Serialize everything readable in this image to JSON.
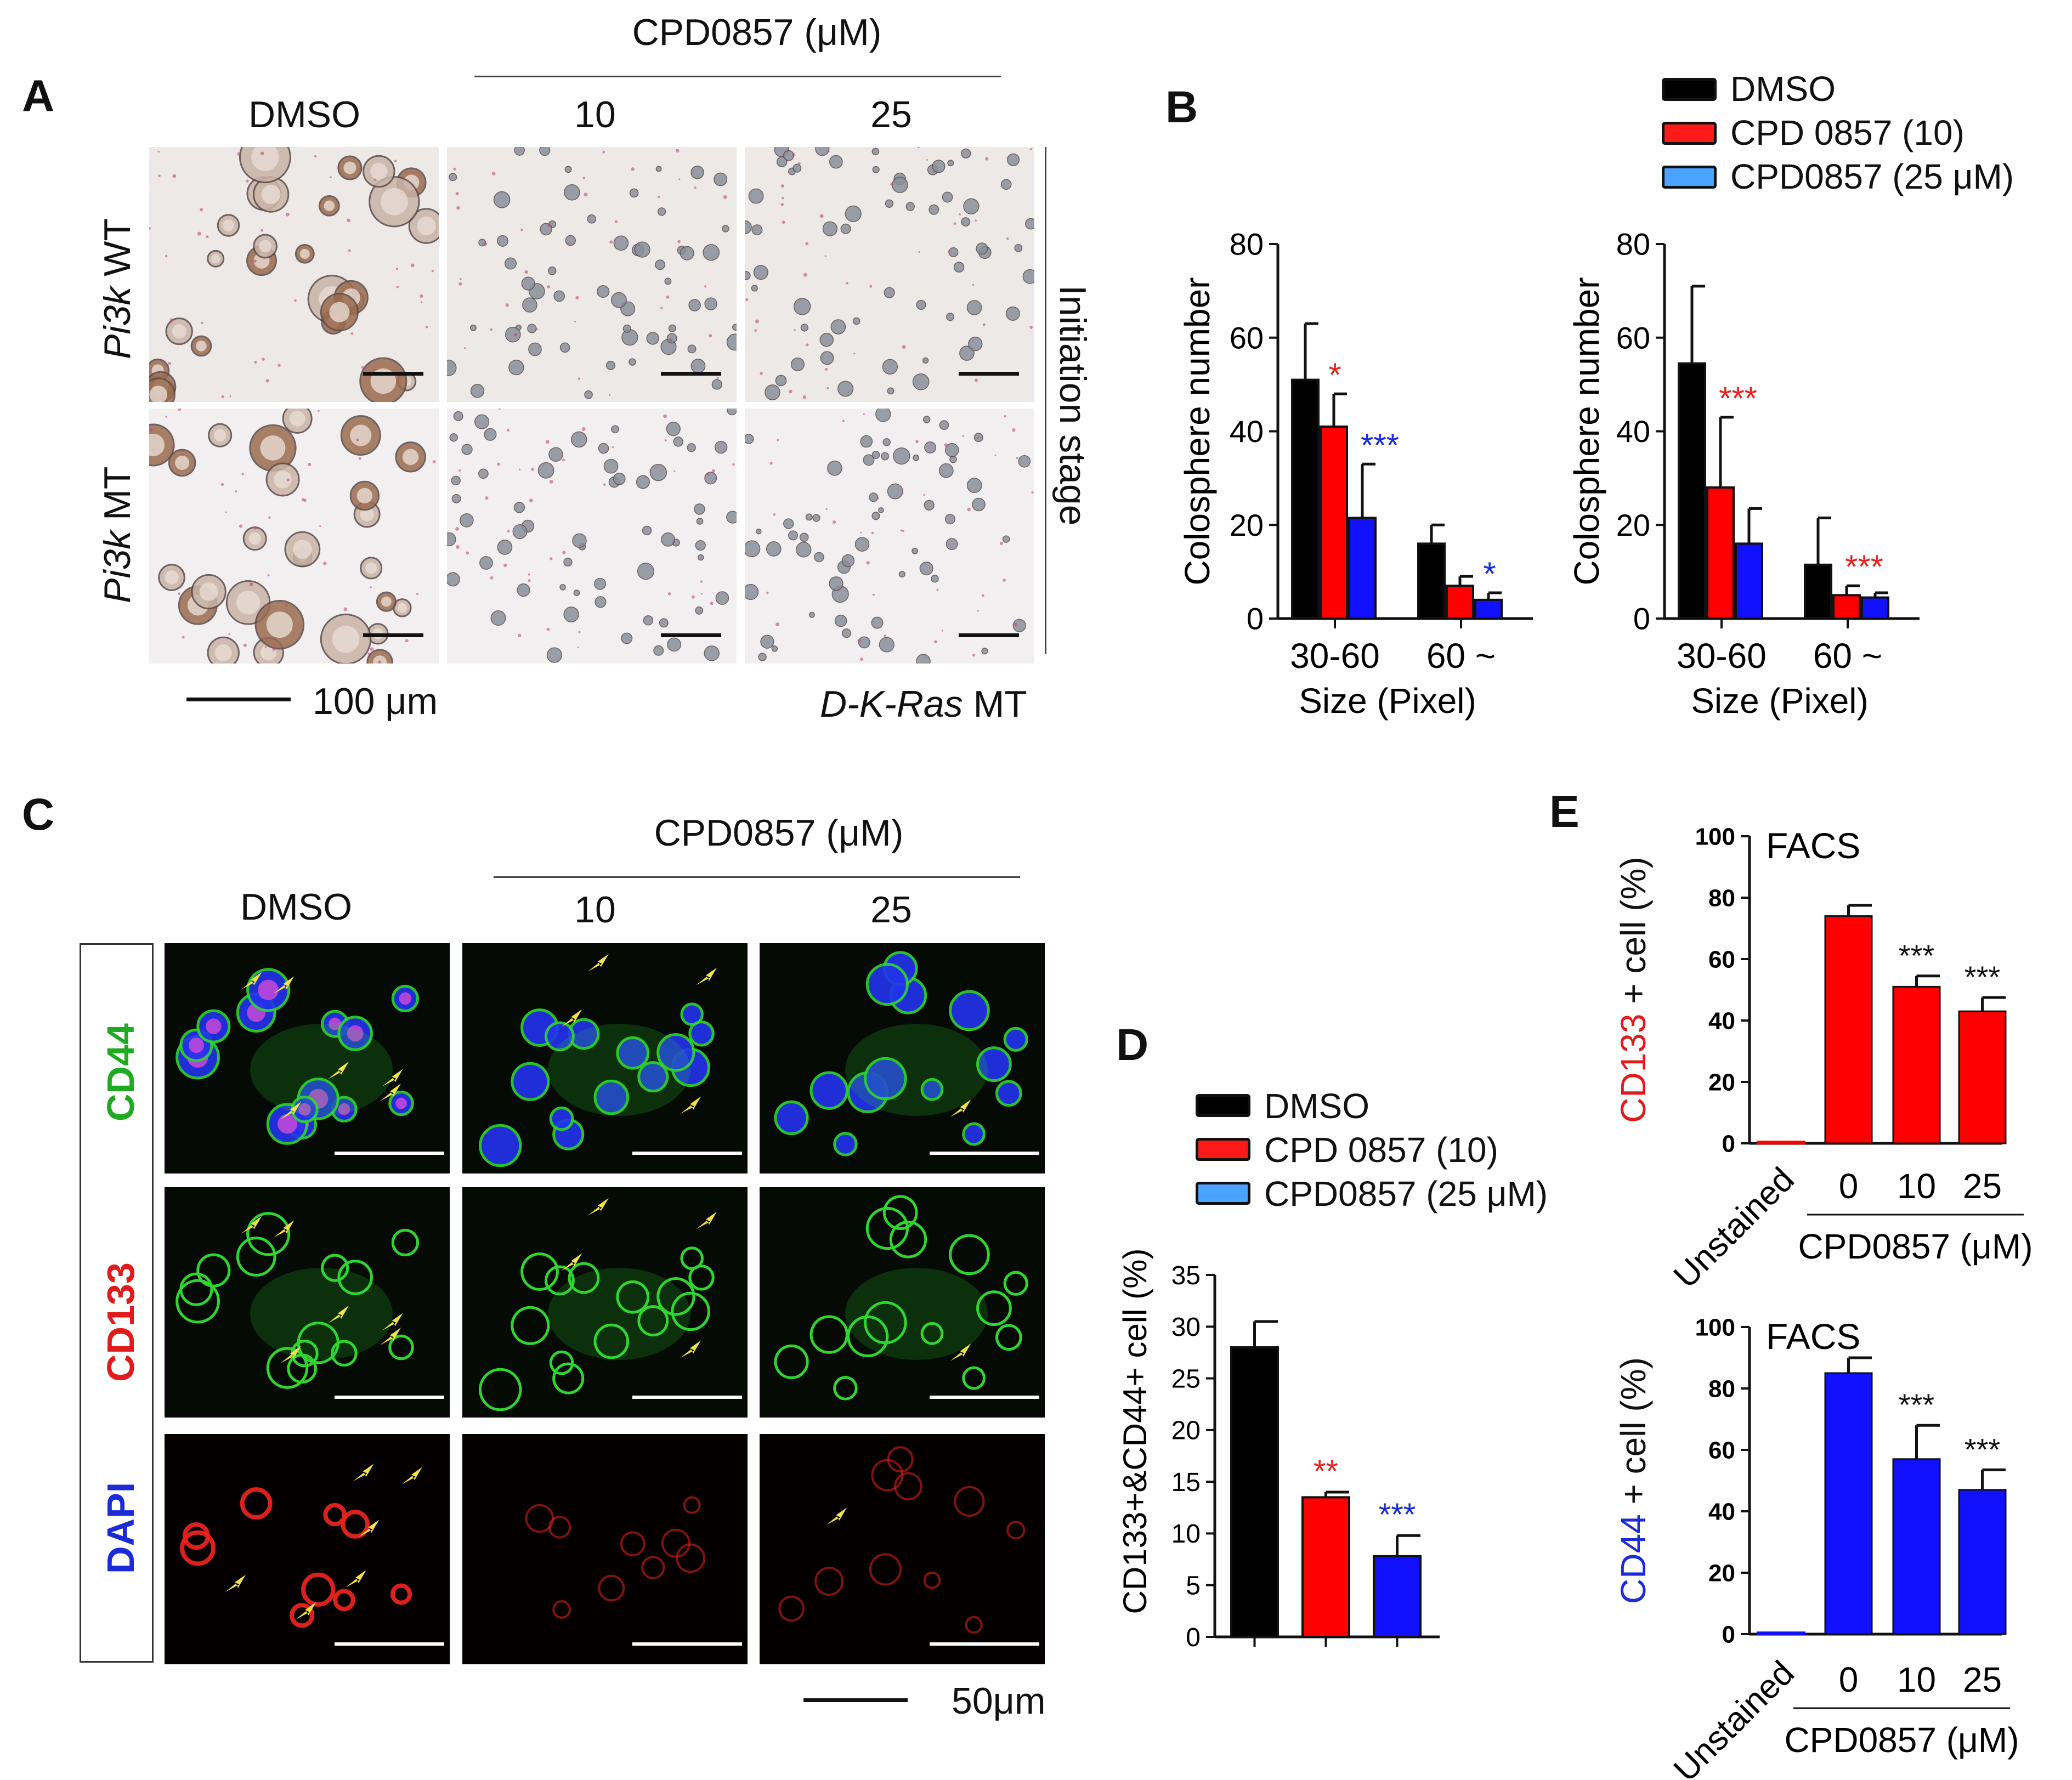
{
  "panels": {
    "A": "A",
    "B": "B",
    "C": "C",
    "D": "D",
    "E": "E"
  },
  "panel_a": {
    "compound_header": "CPD0857 (μM)",
    "col_labels": [
      "DMSO",
      "10",
      "25"
    ],
    "row_labels": [
      "Pi3k WT",
      "Pi3k MT"
    ],
    "row_labels_italic": [
      "Pi3k",
      "Pi3k"
    ],
    "row_labels_plain": [
      " WT",
      " MT"
    ],
    "stage_label": "Initiation stage",
    "scale_label": "100 μm",
    "footer_italic": "D-K-Ras",
    "footer_plain": " MT",
    "image_colors": {
      "wt_bg": "#ece9e6",
      "mt_bg": "#f2eff0",
      "cell": "#8a6a5a",
      "cell_light": "#c9b3a6"
    }
  },
  "panel_c": {
    "compound_header": "CPD0857 (μM)",
    "col_labels": [
      "DMSO",
      "10",
      "25"
    ],
    "row_labels": [
      "CD44",
      "CD133",
      "DAPI"
    ],
    "row_label_colors": [
      "#1faa1f",
      "#e11b1b",
      "#1b2bd8"
    ],
    "scale_label": "50μm",
    "image_colors": {
      "bg": "#000000",
      "green": "#2fd62f",
      "red": "#e8231f",
      "blue": "#2233ee",
      "arrow": "#f2e24a"
    }
  },
  "legend": {
    "items": [
      "DMSO",
      "CPD 0857 (10)",
      "CPD0857 (25 μM)"
    ],
    "colors": [
      "#000000",
      "#ff0000",
      "#1111ff"
    ]
  },
  "colors": {
    "dmso": "#000000",
    "cpd10": "#ff0000",
    "cpd25": "#1111ff",
    "sig10": "#e8231f",
    "sig25": "#1b2bd8"
  },
  "chart_data": [
    {
      "id": "B-left",
      "type": "bar",
      "categories": [
        "30-60",
        "60 ~"
      ],
      "xlabel": "Size (Pixel)",
      "ylabel": "Colosphere number",
      "ylim": [
        0,
        80
      ],
      "yticks": [
        0,
        20,
        40,
        60,
        80
      ],
      "series": [
        {
          "name": "DMSO",
          "values": [
            51,
            16
          ],
          "errors": [
            12,
            4
          ]
        },
        {
          "name": "CPD 0857 (10)",
          "values": [
            41,
            7
          ],
          "errors": [
            7,
            2
          ]
        },
        {
          "name": "CPD0857 (25 μM)",
          "values": [
            21.5,
            4
          ],
          "errors": [
            11.5,
            1.5
          ]
        }
      ],
      "significance": [
        {
          "cat": 0,
          "series": 1,
          "text": "*"
        },
        {
          "cat": 0,
          "series": 2,
          "text": "***"
        },
        {
          "cat": 1,
          "series": 2,
          "text": "*"
        }
      ]
    },
    {
      "id": "B-right",
      "type": "bar",
      "categories": [
        "30-60",
        "60 ~"
      ],
      "xlabel": "Size (Pixel)",
      "ylabel": "Colosphere number",
      "ylim": [
        0,
        80
      ],
      "yticks": [
        0,
        20,
        40,
        60,
        80
      ],
      "series": [
        {
          "name": "DMSO",
          "values": [
            54.5,
            11.5
          ],
          "errors": [
            16.5,
            10
          ]
        },
        {
          "name": "CPD 0857 (10)",
          "values": [
            28,
            5
          ],
          "errors": [
            15,
            2
          ]
        },
        {
          "name": "CPD0857 (25 μM)",
          "values": [
            16,
            4.5
          ],
          "errors": [
            7.5,
            1
          ]
        }
      ],
      "significance": [
        {
          "cat": 0,
          "series": 1,
          "text": "***"
        },
        {
          "cat": 1,
          "series": 1,
          "text": "***"
        }
      ]
    },
    {
      "id": "D",
      "type": "bar",
      "categories": [
        "DMSO",
        "CPD 0857 (10)",
        "CPD0857 (25 μM)"
      ],
      "ylabel": "CD133+&CD44+ cell (%)",
      "ylim": [
        0,
        35
      ],
      "yticks": [
        0,
        5,
        10,
        15,
        20,
        25,
        30,
        35
      ],
      "values": [
        28,
        13.5,
        7.8
      ],
      "errors": [
        2.5,
        0.5,
        2
      ],
      "significance": [
        "",
        "**",
        "***"
      ]
    },
    {
      "id": "E-top",
      "type": "bar",
      "title": "FACS",
      "categories": [
        "Unstained",
        "0",
        "10",
        "25"
      ],
      "xlabel": "CPD0857 (μM)",
      "ylabel_colored": "CD133",
      "ylabel_rest": " + cell (%)",
      "ylim": [
        0,
        100
      ],
      "yticks": [
        0,
        20,
        40,
        60,
        80,
        100
      ],
      "values": [
        0.5,
        74,
        51,
        43
      ],
      "errors": [
        0,
        3.5,
        3.5,
        4.5
      ],
      "significance": [
        "",
        "",
        "***",
        "***"
      ]
    },
    {
      "id": "E-bottom",
      "type": "bar",
      "title": "FACS",
      "categories": [
        "Unstained",
        "0",
        "10",
        "25"
      ],
      "xlabel": "CPD0857 (μM)",
      "ylabel_colored": "CD44",
      "ylabel_rest": " + cell (%)",
      "ylim": [
        0,
        100
      ],
      "yticks": [
        0,
        20,
        40,
        60,
        80,
        100
      ],
      "values": [
        0.5,
        85,
        57,
        47
      ],
      "errors": [
        0,
        5,
        11,
        6.5
      ],
      "significance": [
        "",
        "",
        "***",
        "***"
      ]
    }
  ]
}
